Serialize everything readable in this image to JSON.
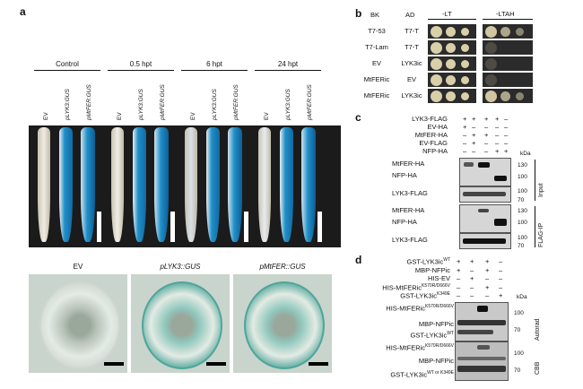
{
  "panels": {
    "a": {
      "letter": "a",
      "time_groups": [
        "Control",
        "0.5 hpt",
        "6 hpt",
        "24 hpt"
      ],
      "lane_labels": [
        "EV",
        "pLYK3:GUS",
        "pMtFER:GUS"
      ],
      "section_labels": [
        "EV",
        "pLYK3::GUS",
        "pMtFER::GUS"
      ]
    },
    "b": {
      "letter": "b",
      "col_headers": [
        "BK",
        "AD"
      ],
      "media": [
        "-LT",
        "-LTAH"
      ],
      "rows": [
        {
          "bk": "T7-53",
          "ad": "T7-T"
        },
        {
          "bk": "T7-Lam",
          "ad": "T7-T"
        },
        {
          "bk": "EV",
          "ad": "LYK3ic"
        },
        {
          "bk": "MtFERic",
          "ad": "EV"
        },
        {
          "bk": "MtFERic",
          "ad": "LYK3ic"
        }
      ]
    },
    "c": {
      "letter": "c",
      "conditions": [
        {
          "label": "LYK3-FLAG",
          "signs": [
            "+",
            "+",
            "+",
            "+",
            "–"
          ]
        },
        {
          "label": "EV-HA",
          "signs": [
            "+",
            "–",
            "–",
            "–",
            "–"
          ]
        },
        {
          "label": "MtFER-HA",
          "signs": [
            "–",
            "+",
            "+",
            "–",
            "–"
          ]
        },
        {
          "label": "EV-FLAG",
          "signs": [
            "–",
            "+",
            "–",
            "–",
            "–"
          ]
        },
        {
          "label": "NFP-HA",
          "signs": [
            "–",
            "–",
            "–",
            "+",
            "+"
          ]
        }
      ],
      "kda": "kDa",
      "input_labels": [
        "MtFER-HA",
        "NFP-HA",
        "LYK3-FLAG"
      ],
      "ip_labels": [
        "MtFER-HA",
        "NFP-HA",
        "LYK3-FLAG"
      ],
      "markers_top": [
        "130",
        "100",
        "100",
        "70"
      ],
      "markers_bottom": [
        "130",
        "100",
        "100",
        "70"
      ],
      "side_labels": [
        "Input",
        "FLAG-IP"
      ]
    },
    "d": {
      "letter": "d",
      "conditions": [
        {
          "label": "GST-LYK3ic",
          "sup": "WT",
          "signs": [
            "+",
            "+",
            "+",
            "–"
          ]
        },
        {
          "label": "MBP-NFPic",
          "sup": "",
          "signs": [
            "+",
            "–",
            "+",
            "–"
          ]
        },
        {
          "label": "HIS-EV",
          "sup": "",
          "signs": [
            "–",
            "+",
            "–",
            "–"
          ]
        },
        {
          "label": "HIS-MtFERic",
          "sup": "K570R/D666V",
          "signs": [
            "–",
            "–",
            "+",
            "–"
          ]
        },
        {
          "label": "GST-LYK3ic",
          "sup": "K349E",
          "signs": [
            "–",
            "–",
            "–",
            "+"
          ]
        }
      ],
      "kda": "kDa",
      "autorad_labels": [
        {
          "label": "HIS-MtFERic",
          "sup": "K570R/D666V"
        },
        {
          "label": "MBP-NFPic",
          "sup": ""
        },
        {
          "label": "GST-LYK3ic",
          "sup": "WT"
        }
      ],
      "cbb_labels": [
        {
          "label": "HIS-MtFERic",
          "sup": "K570R/D666V"
        },
        {
          "label": "MBP-NFPic",
          "sup": ""
        },
        {
          "label": "GST-LYK3ic",
          "sup": "WT or K349E"
        }
      ],
      "markers_top": [
        "100",
        "70"
      ],
      "markers_bottom": [
        "100",
        "70"
      ],
      "side_labels": [
        "Autorad",
        "CBB"
      ]
    }
  },
  "colors": {
    "gus_blue": "#1f8fc9",
    "yeast": "#d9cfa8",
    "stain": "#4fa59a"
  }
}
